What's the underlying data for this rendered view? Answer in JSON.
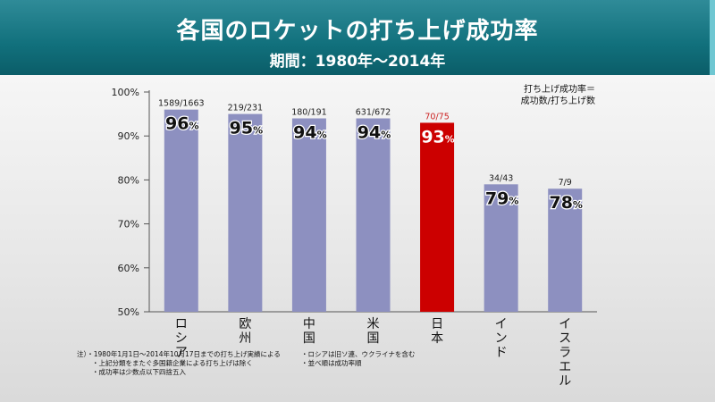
{
  "header": {
    "title": "各国のロケットの打ち上げ成功率",
    "period": "期間：1980年～2014年"
  },
  "legend_note": [
    "打ち上げ成功率＝",
    "成功数/打ち上げ数"
  ],
  "footnotes": {
    "left": [
      "注）・1980年1月1日～2014年10月17日までの打ち上げ実績による",
      "・上記分類をまたぐ多国籍企業による打ち上げは除く",
      "・成功率は少数点以下四捨五入"
    ],
    "right": [
      "・ロシアは旧ソ連、ウクライナを含む",
      "・並べ順は成功率順"
    ]
  },
  "colors": {
    "bar": "#8d90c0",
    "highlight": "#cc0000",
    "highlight_text": "#cc2222"
  },
  "chart_data": {
    "type": "bar",
    "title": "各国のロケットの打ち上げ成功率",
    "categories": [
      "ロシア",
      "欧州",
      "中国",
      "米国",
      "日本",
      "インド",
      "イスラエル"
    ],
    "values": [
      96,
      95,
      94,
      94,
      93,
      79,
      78
    ],
    "value_unit": "%",
    "fraction_labels": [
      "1589/1663",
      "219/231",
      "180/191",
      "631/672",
      "70/75",
      "34/43",
      "7/9"
    ],
    "highlight_index": 4,
    "yticks": [
      "100%",
      "90%",
      "80%",
      "70%",
      "60%",
      "50%"
    ],
    "ylim": [
      50,
      100
    ],
    "xlabel": "",
    "ylabel": ""
  }
}
